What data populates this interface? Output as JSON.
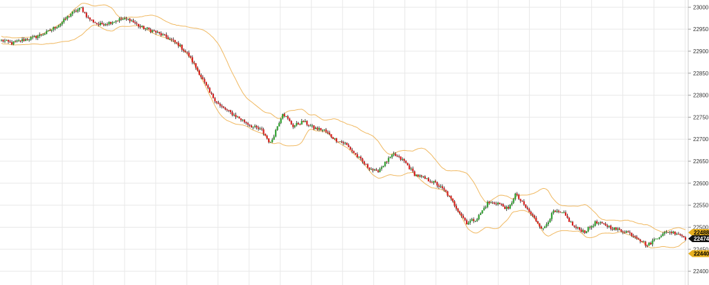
{
  "chart_data": {
    "type": "candlestick",
    "title": "",
    "xlabel": "",
    "ylabel": "",
    "ylim": [
      22375,
      23010
    ],
    "y_ticks": [
      22400,
      22450,
      22500,
      22550,
      22600,
      22650,
      22700,
      22750,
      22800,
      22850,
      22900,
      22950,
      23000
    ],
    "y_tick_labels": [
      "22400",
      "22450",
      "22500",
      "22550",
      "22600",
      "22650",
      "22700",
      "22750",
      "22800",
      "22850",
      "22900",
      "22950",
      "23000"
    ],
    "x_gridline_count": 22,
    "grid": true,
    "overlay": "bollinger-bands",
    "axis_position": "right",
    "price_markers": [
      {
        "label": "22488",
        "value": 22488,
        "color": "#e8b020",
        "text_color": "#000000"
      },
      {
        "label": "22474",
        "value": 22474,
        "color": "#111111",
        "text_color": "#ffffff"
      },
      {
        "label": "22440",
        "value": 22440,
        "color": "#e8b020",
        "text_color": "#000000"
      }
    ],
    "colors": {
      "up": "#2fa02f",
      "down": "#d62020",
      "band": "#f0b860",
      "wick": "#111111",
      "grid": "#e8e8e8"
    },
    "anchors": [
      [
        0,
        22925
      ],
      [
        6,
        22918
      ],
      [
        12,
        22925
      ],
      [
        18,
        22930
      ],
      [
        26,
        22942
      ],
      [
        34,
        22962
      ],
      [
        40,
        22985
      ],
      [
        46,
        22998
      ],
      [
        50,
        22975
      ],
      [
        56,
        22960
      ],
      [
        62,
        22965
      ],
      [
        68,
        22972
      ],
      [
        74,
        22972
      ],
      [
        80,
        22955
      ],
      [
        88,
        22945
      ],
      [
        96,
        22930
      ],
      [
        102,
        22915
      ],
      [
        108,
        22890
      ],
      [
        114,
        22850
      ],
      [
        120,
        22805
      ],
      [
        126,
        22775
      ],
      [
        132,
        22760
      ],
      [
        138,
        22745
      ],
      [
        144,
        22730
      ],
      [
        150,
        22720
      ],
      [
        155,
        22690
      ],
      [
        162,
        22760
      ],
      [
        168,
        22730
      ],
      [
        174,
        22740
      ],
      [
        180,
        22725
      ],
      [
        186,
        22720
      ],
      [
        192,
        22700
      ],
      [
        198,
        22690
      ],
      [
        204,
        22665
      ],
      [
        210,
        22640
      ],
      [
        216,
        22625
      ],
      [
        222,
        22650
      ],
      [
        226,
        22665
      ],
      [
        232,
        22650
      ],
      [
        238,
        22620
      ],
      [
        244,
        22610
      ],
      [
        250,
        22600
      ],
      [
        256,
        22580
      ],
      [
        262,
        22545
      ],
      [
        268,
        22510
      ],
      [
        274,
        22520
      ],
      [
        280,
        22555
      ],
      [
        286,
        22555
      ],
      [
        292,
        22540
      ],
      [
        296,
        22575
      ],
      [
        300,
        22555
      ],
      [
        306,
        22525
      ],
      [
        312,
        22495
      ],
      [
        318,
        22535
      ],
      [
        324,
        22530
      ],
      [
        330,
        22500
      ],
      [
        336,
        22490
      ],
      [
        342,
        22510
      ],
      [
        348,
        22505
      ],
      [
        354,
        22495
      ],
      [
        360,
        22490
      ],
      [
        366,
        22478
      ],
      [
        372,
        22458
      ],
      [
        378,
        22478
      ],
      [
        384,
        22490
      ],
      [
        390,
        22486
      ],
      [
        394,
        22475
      ]
    ],
    "candle_count": 395
  }
}
